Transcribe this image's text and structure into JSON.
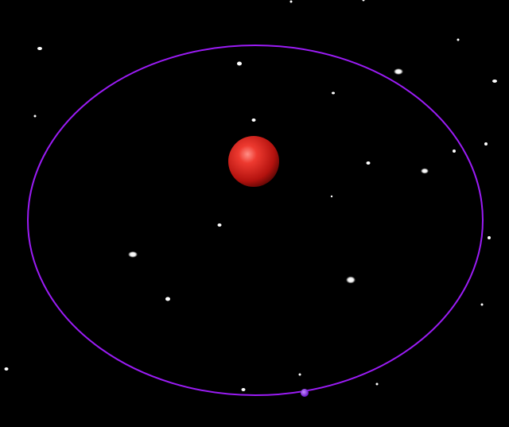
{
  "scene": {
    "background_color": "#000000",
    "star_color": "#ffffff",
    "orbit_color": "#9b1cf5",
    "planet_color": "#e0201c",
    "moon_color": "#8a2be2"
  },
  "objects": [
    {
      "name": "star-field",
      "icon": "star-icon"
    },
    {
      "name": "orbit-path",
      "icon": "ellipse-icon"
    },
    {
      "name": "central-planet",
      "icon": "red-sphere-icon"
    },
    {
      "name": "orbiting-body",
      "icon": "purple-dot-icon"
    }
  ]
}
